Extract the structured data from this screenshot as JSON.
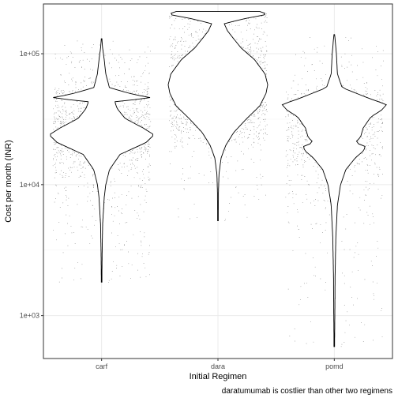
{
  "chart_data": {
    "type": "violin",
    "xlabel": "Initial Regimen",
    "ylabel": "Cost per month (INR)",
    "caption": "daratumumab is costlier than other two regimens",
    "y_scale": "log10",
    "ylim": [
      470,
      240000
    ],
    "y_ticks": [
      {
        "value": 1000,
        "label": "1e+03"
      },
      {
        "value": 10000,
        "label": "1e+04"
      },
      {
        "value": 100000,
        "label": "1e+05"
      }
    ],
    "grid": true,
    "categories": [
      "carf",
      "dara",
      "pomd"
    ],
    "series": [
      {
        "category": "carf",
        "min": 1800,
        "max": 130000,
        "density": [
          [
            1800,
            0.005
          ],
          [
            3000,
            0.01
          ],
          [
            5000,
            0.02
          ],
          [
            8000,
            0.05
          ],
          [
            10000,
            0.08
          ],
          [
            13000,
            0.15
          ],
          [
            17000,
            0.35
          ],
          [
            21000,
            0.85
          ],
          [
            24000,
            1.0
          ],
          [
            27000,
            0.8
          ],
          [
            32000,
            0.45
          ],
          [
            38000,
            0.3
          ],
          [
            43000,
            0.25
          ],
          [
            46000,
            0.95
          ],
          [
            49000,
            0.6
          ],
          [
            55000,
            0.15
          ],
          [
            70000,
            0.08
          ],
          [
            90000,
            0.05
          ],
          [
            110000,
            0.02
          ],
          [
            130000,
            0.005
          ]
        ]
      },
      {
        "category": "dara",
        "min": 5300,
        "max": 210000,
        "density": [
          [
            5300,
            0.005
          ],
          [
            9000,
            0.01
          ],
          [
            12000,
            0.02
          ],
          [
            16000,
            0.06
          ],
          [
            20000,
            0.15
          ],
          [
            25000,
            0.3
          ],
          [
            32000,
            0.55
          ],
          [
            40000,
            0.8
          ],
          [
            50000,
            0.92
          ],
          [
            58000,
            0.95
          ],
          [
            70000,
            0.9
          ],
          [
            90000,
            0.7
          ],
          [
            110000,
            0.45
          ],
          [
            130000,
            0.3
          ],
          [
            150000,
            0.18
          ],
          [
            170000,
            0.12
          ],
          [
            185000,
            0.5
          ],
          [
            200000,
            0.95
          ],
          [
            210000,
            0.8
          ]
        ]
      },
      {
        "category": "pomd",
        "min": 580,
        "max": 140000,
        "density": [
          [
            580,
            0.005
          ],
          [
            1000,
            0.01
          ],
          [
            2000,
            0.015
          ],
          [
            4000,
            0.03
          ],
          [
            7000,
            0.06
          ],
          [
            10000,
            0.12
          ],
          [
            13000,
            0.22
          ],
          [
            16000,
            0.4
          ],
          [
            18000,
            0.55
          ],
          [
            19500,
            0.6
          ],
          [
            21000,
            0.4
          ],
          [
            23000,
            0.5
          ],
          [
            27000,
            0.55
          ],
          [
            33000,
            0.7
          ],
          [
            37000,
            0.9
          ],
          [
            41000,
            1.0
          ],
          [
            45000,
            0.7
          ],
          [
            55000,
            0.15
          ],
          [
            70000,
            0.06
          ],
          [
            100000,
            0.04
          ],
          [
            130000,
            0.015
          ],
          [
            140000,
            0.005
          ]
        ]
      }
    ],
    "jitter_points": {
      "shown": true,
      "color": "#000000",
      "per_category_ranges": {
        "carf": [
          1800,
          130000
        ],
        "dara": [
          5300,
          210000
        ],
        "pomd": [
          580,
          140000
        ]
      }
    }
  }
}
